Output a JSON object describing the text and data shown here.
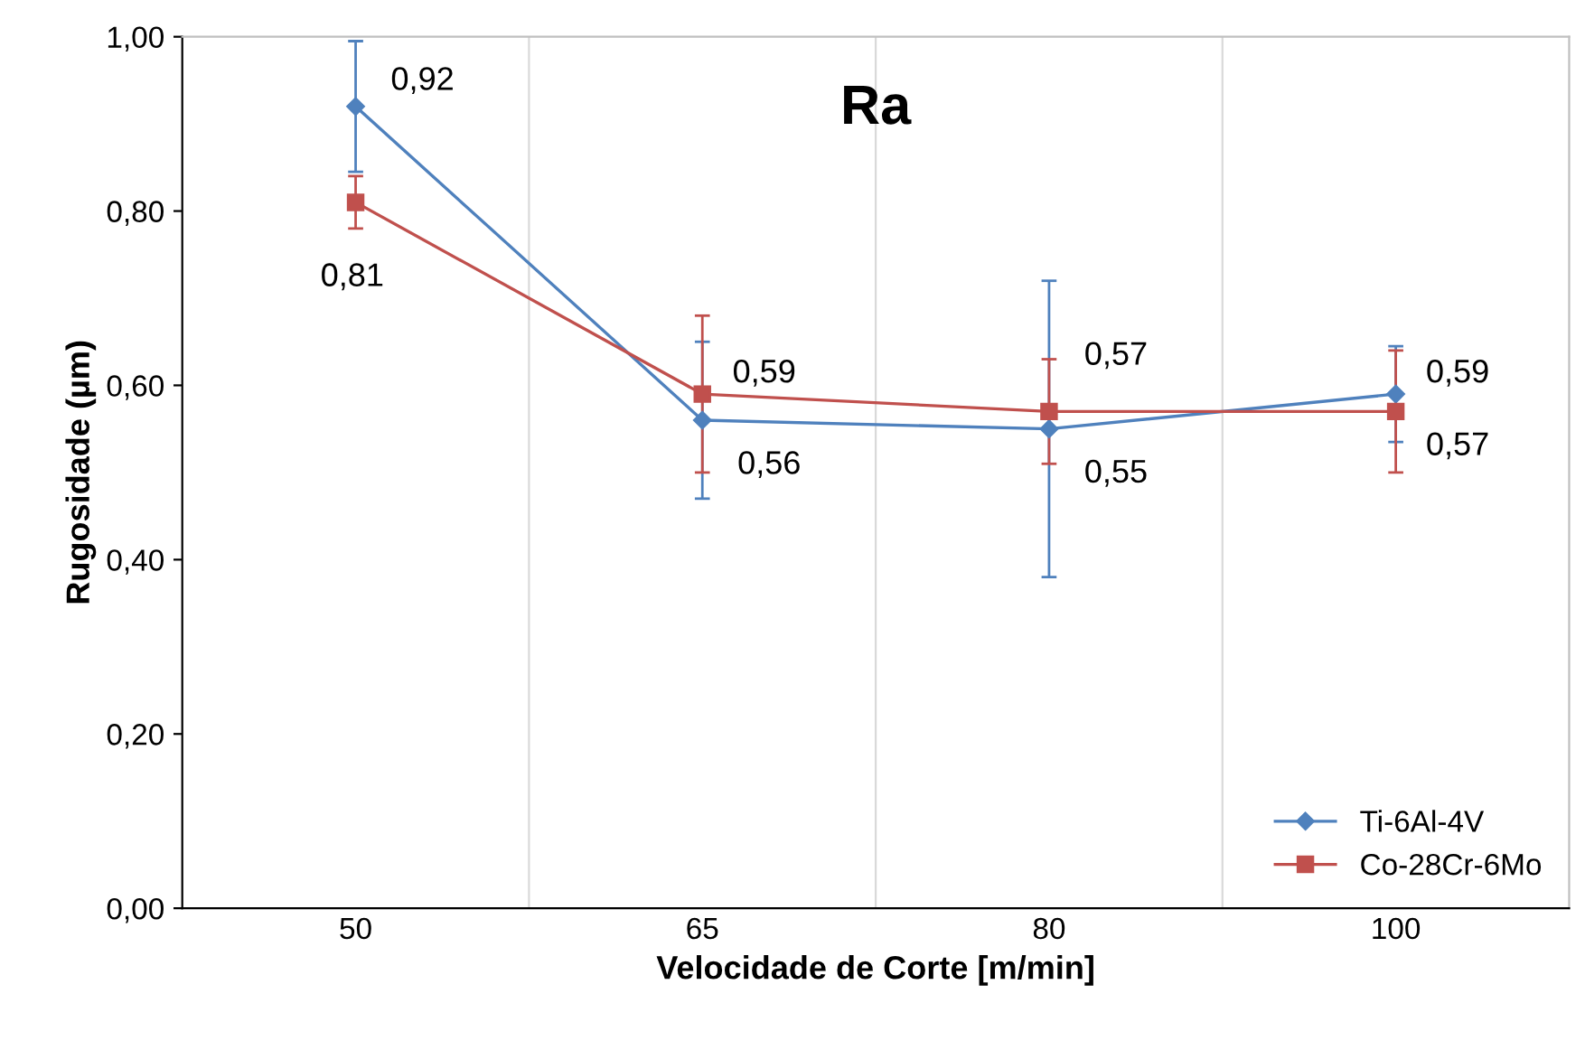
{
  "chart_data": {
    "type": "line",
    "title": "Ra",
    "xlabel": "Velocidade de Corte [m/min]",
    "ylabel": "Rugosidade (µm)",
    "categories": [
      "50",
      "65",
      "80",
      "100"
    ],
    "series": [
      {
        "name": "Ti-6Al-4V",
        "color": "#4f81bd",
        "marker": "diamond",
        "values": [
          0.92,
          0.56,
          0.55,
          0.59
        ],
        "value_labels": [
          "0,92",
          "0,56",
          "0,55",
          "0,59"
        ],
        "errors": [
          0.075,
          0.09,
          0.17,
          0.055
        ]
      },
      {
        "name": "Co-28Cr-6Mo",
        "color": "#c0504d",
        "marker": "square",
        "values": [
          0.81,
          0.59,
          0.57,
          0.57
        ],
        "value_labels": [
          "0,81",
          "0,59",
          "0,57",
          "0,57"
        ],
        "errors": [
          0.03,
          0.09,
          0.06,
          0.07
        ]
      }
    ],
    "ylim": [
      0,
      1
    ],
    "yticks": [
      {
        "value": 0,
        "label": "0,00"
      },
      {
        "value": 0.2,
        "label": "0,20"
      },
      {
        "value": 0.4,
        "label": "0,40"
      },
      {
        "value": 0.6,
        "label": "0,60"
      },
      {
        "value": 0.8,
        "label": "0,80"
      },
      {
        "value": 1,
        "label": "1,00"
      }
    ],
    "grid": "x",
    "legend": "bottom right"
  }
}
